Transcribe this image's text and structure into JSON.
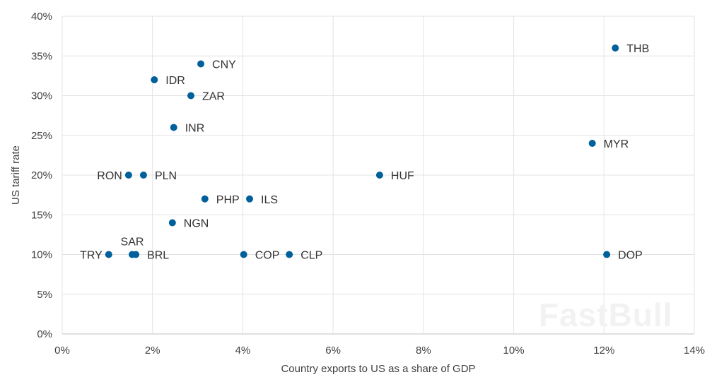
{
  "chart_data": {
    "type": "scatter",
    "title": "",
    "xlabel": "Country exports to US as a share of GDP",
    "ylabel": "US tariff rate",
    "xlim": [
      0,
      14
    ],
    "ylim": [
      0,
      40
    ],
    "x_ticks": [
      0,
      2,
      4,
      6,
      8,
      10,
      12,
      14
    ],
    "y_ticks": [
      0,
      5,
      10,
      15,
      20,
      25,
      30,
      35,
      40
    ],
    "x_tick_labels": [
      "0%",
      "2%",
      "4%",
      "6%",
      "8%",
      "10%",
      "12%",
      "14%"
    ],
    "y_tick_labels": [
      "0%",
      "5%",
      "10%",
      "15%",
      "20%",
      "25%",
      "30%",
      "35%",
      "40%"
    ],
    "grid": true,
    "marker_color": "#00609C",
    "points": [
      {
        "label": "THB",
        "x": 12.25,
        "y": 36,
        "label_side": "right"
      },
      {
        "label": "CNY",
        "x": 3.07,
        "y": 34,
        "label_side": "right"
      },
      {
        "label": "IDR",
        "x": 2.04,
        "y": 32,
        "label_side": "right"
      },
      {
        "label": "ZAR",
        "x": 2.85,
        "y": 30,
        "label_side": "right"
      },
      {
        "label": "INR",
        "x": 2.47,
        "y": 26,
        "label_side": "right"
      },
      {
        "label": "MYR",
        "x": 11.74,
        "y": 24,
        "label_side": "right"
      },
      {
        "label": "RON",
        "x": 1.47,
        "y": 20,
        "label_side": "left"
      },
      {
        "label": "PLN",
        "x": 1.8,
        "y": 20,
        "label_side": "right"
      },
      {
        "label": "HUF",
        "x": 7.03,
        "y": 20,
        "label_side": "right"
      },
      {
        "label": "PHP",
        "x": 3.16,
        "y": 17,
        "label_side": "right"
      },
      {
        "label": "ILS",
        "x": 4.15,
        "y": 17,
        "label_side": "right"
      },
      {
        "label": "NGN",
        "x": 2.44,
        "y": 14,
        "label_side": "right"
      },
      {
        "label": "TRY",
        "x": 1.03,
        "y": 10,
        "label_side": "left"
      },
      {
        "label": "SAR",
        "x": 1.55,
        "y": 10,
        "label_side": "above"
      },
      {
        "label": "BRL",
        "x": 1.63,
        "y": 10,
        "label_side": "right"
      },
      {
        "label": "COP",
        "x": 4.02,
        "y": 10,
        "label_side": "right"
      },
      {
        "label": "CLP",
        "x": 5.03,
        "y": 10,
        "label_side": "right"
      },
      {
        "label": "DOP",
        "x": 12.06,
        "y": 10,
        "label_side": "right"
      }
    ]
  },
  "watermark": "FastBull"
}
